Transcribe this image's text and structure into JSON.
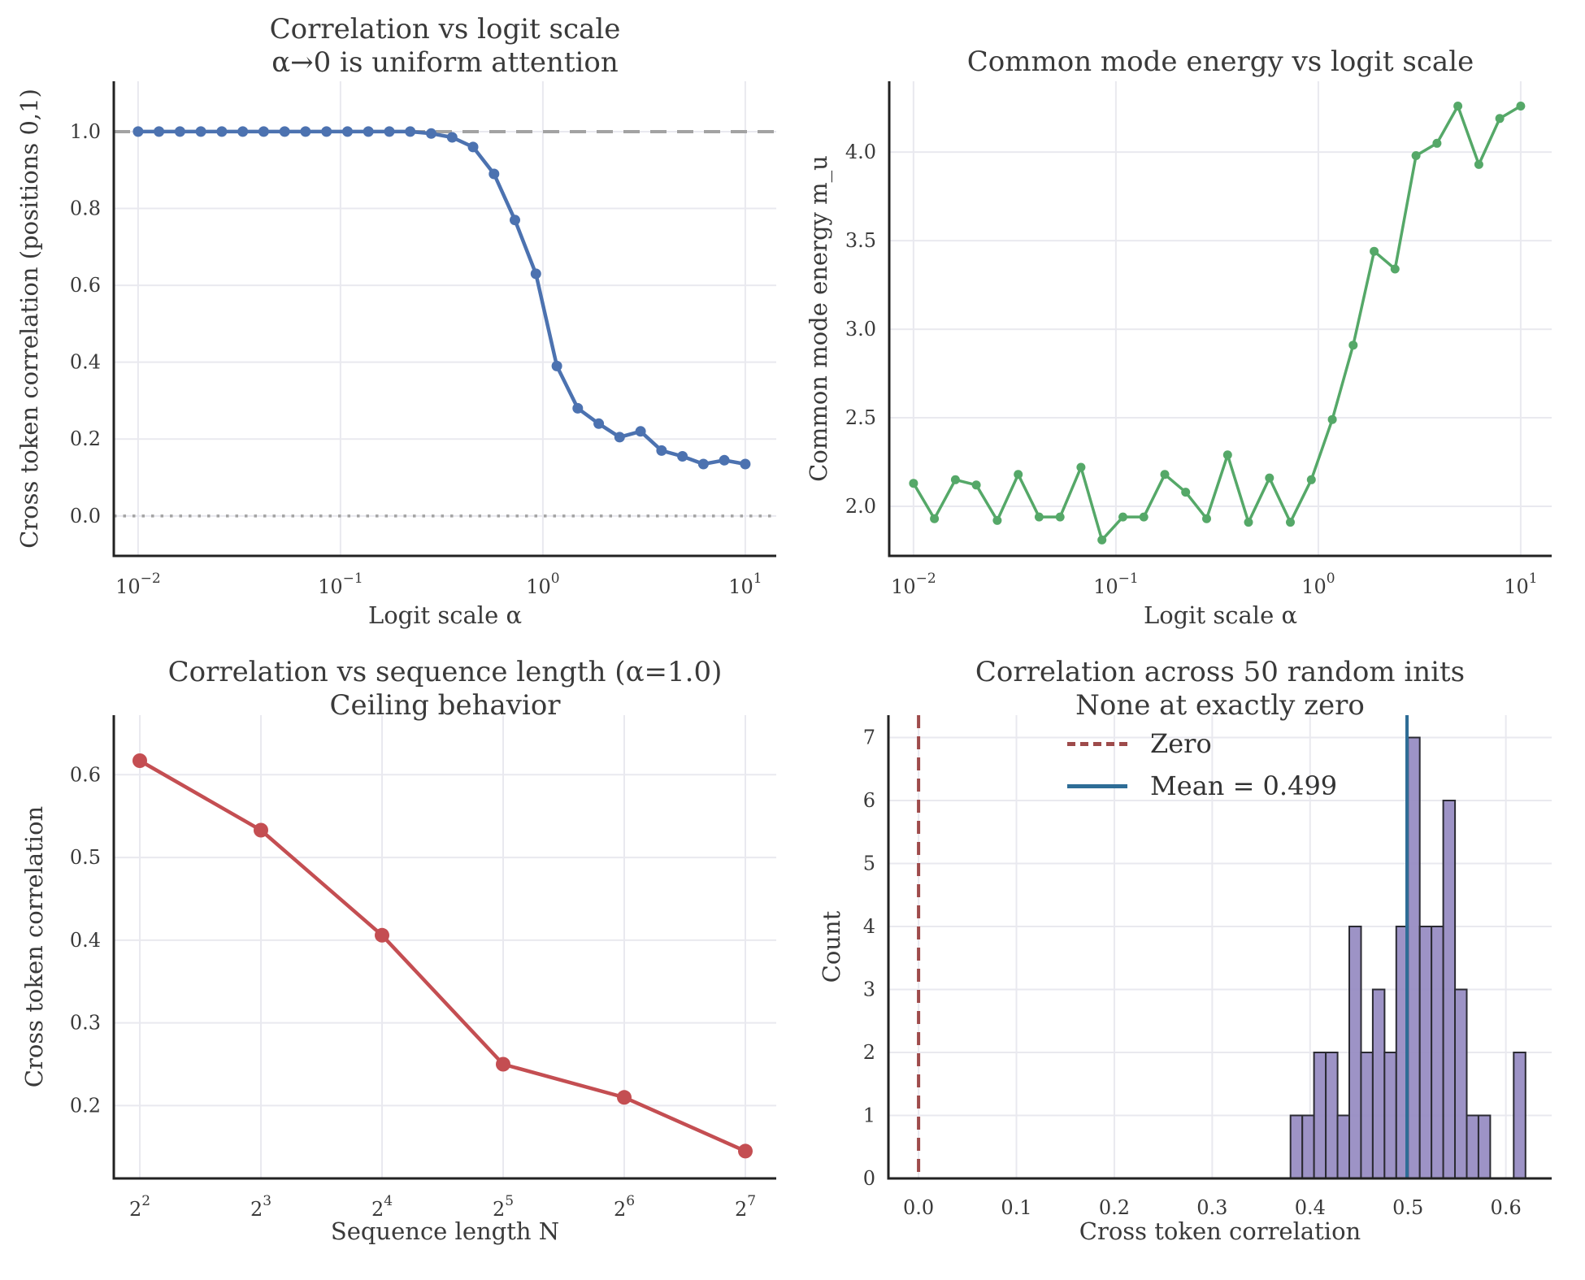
{
  "figure": {
    "background": "#ffffff",
    "grid_color": "#e9e9ef",
    "spine_color": "#222222",
    "text_color": "#3a3a3a"
  },
  "chart_data": [
    {
      "id": "corr-vs-logit-scale",
      "type": "line",
      "title_lines": [
        "Correlation vs logit scale",
        "α→0 is uniform attention"
      ],
      "xlabel": "Logit scale α",
      "ylabel": "Cross token correlation (positions 0,1)",
      "legend_position": "none",
      "grid": true,
      "color": "#4C72B0",
      "xscale": "log10",
      "tick_base": "10",
      "xtick_exponents": [
        -2,
        -1,
        0,
        1
      ],
      "xlim_log": [
        -2.12,
        1.153
      ],
      "ylim": [
        -0.104,
        1.131
      ],
      "ytick_values": [
        0.0,
        0.2,
        0.4,
        0.6,
        0.8,
        1.0
      ],
      "ytick_labels": [
        "0.0",
        "0.2",
        "0.4",
        "0.6",
        "0.8",
        "1.0"
      ],
      "line_width": 4.5,
      "marker_radius": 6.5,
      "hlines": [
        {
          "y": 1.0,
          "color": "#a3a3a3",
          "dash": "20 13",
          "width": 4,
          "name": "uniform-attention-reference-line"
        },
        {
          "y": 0.0,
          "color": "#a3a3a3",
          "dash": "3.5 8",
          "width": 3.5,
          "name": "zero-reference-line"
        }
      ],
      "x": [
        0.01,
        0.01268,
        0.0161,
        0.02043,
        0.02593,
        0.0329,
        0.04175,
        0.05298,
        0.06723,
        0.08532,
        0.1083,
        0.1374,
        0.1743,
        0.2212,
        0.2807,
        0.3562,
        0.452,
        0.5736,
        0.7279,
        0.9237,
        1.1721,
        1.4874,
        1.8874,
        2.395,
        3.0392,
        3.8566,
        4.8939,
        6.2102,
        7.8805,
        10.0
      ],
      "y": [
        1.0,
        1.0,
        1.0,
        1.0,
        1.0,
        1.0,
        1.0,
        1.0,
        1.0,
        1.0,
        1.0,
        1.0,
        1.0,
        1.0,
        0.995,
        0.985,
        0.96,
        0.89,
        0.77,
        0.63,
        0.39,
        0.28,
        0.24,
        0.205,
        0.22,
        0.17,
        0.155,
        0.135,
        0.145,
        0.135
      ]
    },
    {
      "id": "common-mode-energy",
      "type": "line",
      "title_lines": [
        "Common mode energy vs logit scale"
      ],
      "xlabel": "Logit scale α",
      "ylabel": "Common mode energy m_u",
      "legend_position": "none",
      "grid": true,
      "color": "#55A868",
      "xscale": "log10",
      "tick_base": "10",
      "xtick_exponents": [
        -2,
        -1,
        0,
        1
      ],
      "xlim_log": [
        -2.12,
        1.153
      ],
      "ylim": [
        1.72,
        4.4
      ],
      "ytick_values": [
        2.0,
        2.5,
        3.0,
        3.5,
        4.0
      ],
      "ytick_labels": [
        "2.0",
        "2.5",
        "3.0",
        "3.5",
        "4.0"
      ],
      "line_width": 3.5,
      "marker_radius": 5.5,
      "hlines": [],
      "x": [
        0.01,
        0.01268,
        0.0161,
        0.02043,
        0.02593,
        0.0329,
        0.04175,
        0.05298,
        0.06723,
        0.08532,
        0.1083,
        0.1374,
        0.1743,
        0.2212,
        0.2807,
        0.3562,
        0.452,
        0.5736,
        0.7279,
        0.9237,
        1.1721,
        1.4874,
        1.8874,
        2.395,
        3.0392,
        3.8566,
        4.8939,
        6.2102,
        7.8805,
        10.0
      ],
      "y": [
        2.13,
        1.93,
        2.15,
        2.12,
        1.92,
        2.18,
        1.94,
        1.94,
        2.22,
        1.81,
        1.94,
        1.94,
        2.18,
        2.08,
        1.93,
        2.29,
        1.91,
        2.16,
        1.91,
        2.15,
        2.49,
        2.91,
        3.44,
        3.34,
        3.98,
        4.05,
        4.26,
        3.93,
        4.19,
        4.26
      ]
    },
    {
      "id": "corr-vs-sequence-length",
      "type": "line",
      "title_lines": [
        "Correlation vs sequence length (α=1.0)",
        "Ceiling behavior"
      ],
      "xlabel": "Sequence length N",
      "ylabel": "Cross token correlation",
      "legend_position": "none",
      "grid": true,
      "color": "#C44E52",
      "xscale": "log2",
      "tick_base": "2",
      "xtick_exponents": [
        2,
        3,
        4,
        5,
        6,
        7
      ],
      "xlim_log": [
        1.785,
        7.255
      ],
      "ylim": [
        0.112,
        0.672
      ],
      "ytick_values": [
        0.2,
        0.3,
        0.4,
        0.5,
        0.6
      ],
      "ytick_labels": [
        "0.2",
        "0.3",
        "0.4",
        "0.5",
        "0.6"
      ],
      "line_width": 4.5,
      "marker_radius": 9,
      "hlines": [],
      "x": [
        4,
        8,
        16,
        32,
        64,
        128
      ],
      "y": [
        0.617,
        0.533,
        0.406,
        0.25,
        0.21,
        0.145
      ]
    },
    {
      "id": "correlation-histogram",
      "type": "histogram",
      "title_lines": [
        "Correlation across 50 random inits",
        "None at exactly zero"
      ],
      "xlabel": "Cross token correlation",
      "ylabel": "Count",
      "legend_position": "upper-left-inside",
      "grid": true,
      "bar_fill": "#958ac1",
      "bar_edge": "#2b2b33",
      "bin_start": 0.38,
      "bin_width": 0.012,
      "counts": [
        1,
        1,
        2,
        2,
        1,
        4,
        2,
        3,
        2,
        4,
        7,
        4,
        4,
        6,
        3,
        1,
        1,
        0,
        0,
        2
      ],
      "xlim": [
        -0.0308,
        0.6468
      ],
      "xtick_values": [
        0.0,
        0.1,
        0.2,
        0.3,
        0.4,
        0.5,
        0.6
      ],
      "xtick_labels": [
        "0.0",
        "0.1",
        "0.2",
        "0.3",
        "0.4",
        "0.5",
        "0.6"
      ],
      "ylim": [
        0,
        7.355
      ],
      "ytick_values": [
        0,
        1,
        2,
        3,
        4,
        5,
        6,
        7
      ],
      "ytick_labels": [
        "0",
        "1",
        "2",
        "3",
        "4",
        "5",
        "6",
        "7"
      ],
      "vlines": [
        {
          "x": 0.0,
          "color": "#9e4b4b",
          "dash": "16 10",
          "width": 4,
          "name": "zero-vline"
        },
        {
          "x": 0.499,
          "color": "#2e6d96",
          "width": 4,
          "name": "mean-vline"
        }
      ],
      "legend": {
        "entries": [
          {
            "label": "Zero",
            "color": "#9e4b4b",
            "style": "dashed"
          },
          {
            "label": "Mean = 0.499",
            "color": "#2e6d96",
            "style": "solid"
          }
        ]
      }
    }
  ]
}
